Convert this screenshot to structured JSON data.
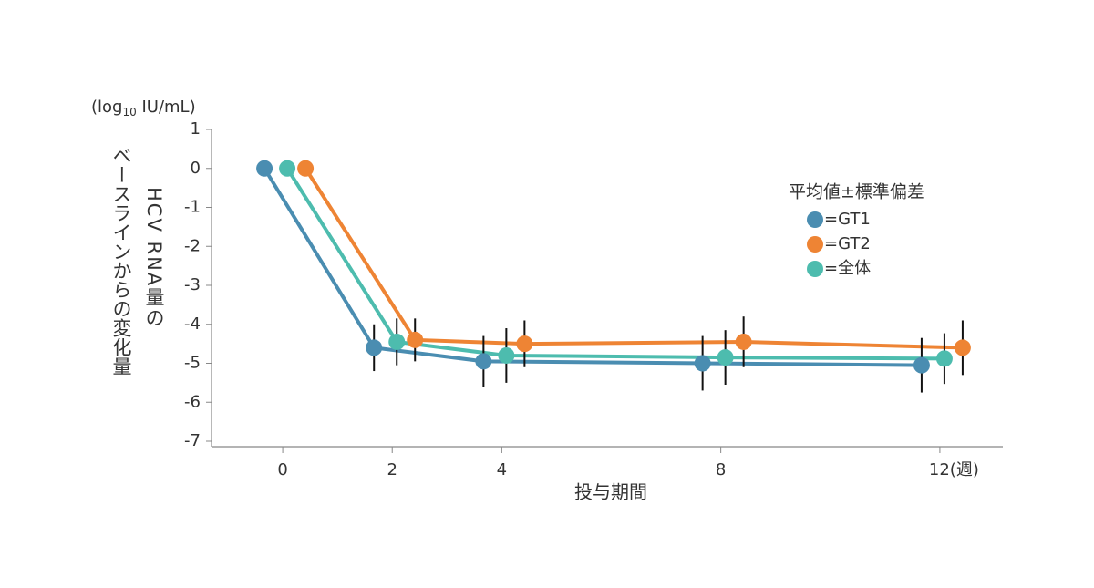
{
  "chart_data": {
    "type": "line",
    "y_unit": {
      "prefix": "(log",
      "sub": "10",
      "suffix": " IU/mL)"
    },
    "y_label": [
      "HCV RNA量の",
      "ベースラインからの変化量"
    ],
    "x_label": "投与期間",
    "x": [
      0,
      2,
      4,
      8,
      12
    ],
    "xlim": [
      -1.3,
      13.15
    ],
    "xticks": [
      0,
      2,
      4,
      8,
      {
        "value": 12,
        "label": "12(週)"
      }
    ],
    "ylim": [
      -7,
      1
    ],
    "yticks": [
      1,
      0,
      -1,
      -2,
      -3,
      -4,
      -5,
      -6,
      -7
    ],
    "legend_title": "平均値±標準偏差",
    "series": [
      {
        "name": "=GT1",
        "color": "#4a8db1",
        "values": [
          0,
          -4.6,
          -4.95,
          -5.0,
          -5.05
        ],
        "errors": [
          null,
          0.6,
          0.65,
          0.7,
          0.7
        ]
      },
      {
        "name": "=GT2",
        "color": "#ee8434",
        "values": [
          0,
          -4.4,
          -4.5,
          -4.45,
          -4.6
        ],
        "errors": [
          null,
          0.55,
          0.6,
          0.65,
          0.7
        ]
      },
      {
        "name": "=全体",
        "color": "#4dbcae",
        "values": [
          0,
          -4.45,
          -4.8,
          -4.85,
          -4.88
        ],
        "errors": [
          null,
          0.6,
          0.7,
          0.7,
          0.65
        ]
      }
    ]
  }
}
